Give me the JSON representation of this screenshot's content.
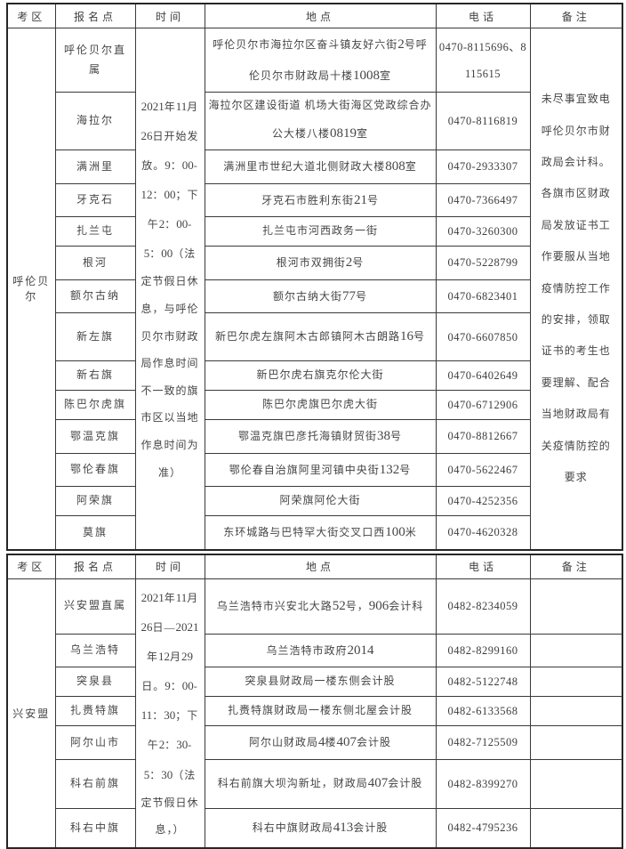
{
  "table": {
    "headers": [
      "考区",
      "报名点",
      "时间",
      "地点",
      "电话",
      "备注"
    ],
    "sections": [
      {
        "region": "呼伦贝尔",
        "time": "2021年11月26日开始发放。9：00-12：00；下午2：00-5：00（法定节假日休息，与呼伦贝尔市财政局作息时间不一致的旗市区以当地作息时间为准）",
        "note": "未尽事宜致电呼伦贝尔市财政局会计科。各旗市区财政局发放证书工作要服从当地疫情防控工作的安排，领取证书的考生也要理解、配合当地财政局有关疫情防控的要求",
        "rows": [
          {
            "point": "呼伦贝尔直属",
            "address": "呼伦贝尔市海拉尔区奋斗镇友好六街2号呼伦贝尔市财政局十楼1008室",
            "phone": "0470-8115696、8115615"
          },
          {
            "point": "海拉尔",
            "address": "海拉尔区建设街道 机场大街海区党政综合办公大楼八楼0819室",
            "phone": "0470-8116819"
          },
          {
            "point": "满洲里",
            "address": "满洲里市世纪大道北侧财政大楼808室",
            "phone": "0470-2933307"
          },
          {
            "point": "牙克石",
            "address": "牙克石市胜利东街21号",
            "phone": "0470-7366497"
          },
          {
            "point": "扎兰屯",
            "address": "扎兰屯市河西政务一街",
            "phone": "0470-3260300"
          },
          {
            "point": "根河",
            "address": "根河市双拥街2号",
            "phone": "0470-5228799"
          },
          {
            "point": "额尔古纳",
            "address": "额尔古纳大街77号",
            "phone": "0470-6823401"
          },
          {
            "point": "新左旗",
            "address": "新巴尔虎左旗阿木古郎镇阿木古朗路16号",
            "phone": "0470-6607850"
          },
          {
            "point": "新右旗",
            "address": "新巴尔虎右旗克尔伦大街",
            "phone": "0470-6402649"
          },
          {
            "point": "陈巴尔虎旗",
            "address": "陈巴尔虎旗巴尔虎大街",
            "phone": "0470-6712906"
          },
          {
            "point": "鄂温克旗",
            "address": "鄂温克旗巴彦托海镇财贸街38号",
            "phone": "0470-8812667"
          },
          {
            "point": "鄂伦春旗",
            "address": "鄂伦春自治旗阿里河镇中央街132号",
            "phone": "0470-5622467"
          },
          {
            "point": "阿荣旗",
            "address": "阿荣旗阿伦大街",
            "phone": "0470-4252356"
          },
          {
            "point": "莫旗",
            "address": "东环城路与巴特罕大街交叉口西100米",
            "phone": "0470-4620328"
          }
        ]
      },
      {
        "region": "兴安盟",
        "time": "2021年11月26日—2021年12月29日。9：00-11：30；下午2：30-5：30（法定节假日休息，）",
        "note": "",
        "rows": [
          {
            "point": "兴安盟直属",
            "address": "乌兰浩特市兴安北大路52号，906会计科",
            "phone": "0482-8234059"
          },
          {
            "point": "乌兰浩特",
            "address": "乌兰浩特市政府2014",
            "phone": "0482-8299160"
          },
          {
            "point": "突泉县",
            "address": "突泉县财政局一楼东侧会计股",
            "phone": "0482-5122748"
          },
          {
            "point": "扎赉特旗",
            "address": "扎赉特旗财政局一楼东侧北屋会计股",
            "phone": "0482-6133568"
          },
          {
            "point": "阿尔山市",
            "address": "阿尔山财政局4楼407会计股",
            "phone": "0482-7125509"
          },
          {
            "point": "科右前旗",
            "address": "科右前旗大坝沟新址，财政局407会计股",
            "phone": "0482-8399270"
          },
          {
            "point": "科右中旗",
            "address": "科右中旗财政局413会计股",
            "phone": "0482-4795236"
          }
        ]
      }
    ]
  }
}
